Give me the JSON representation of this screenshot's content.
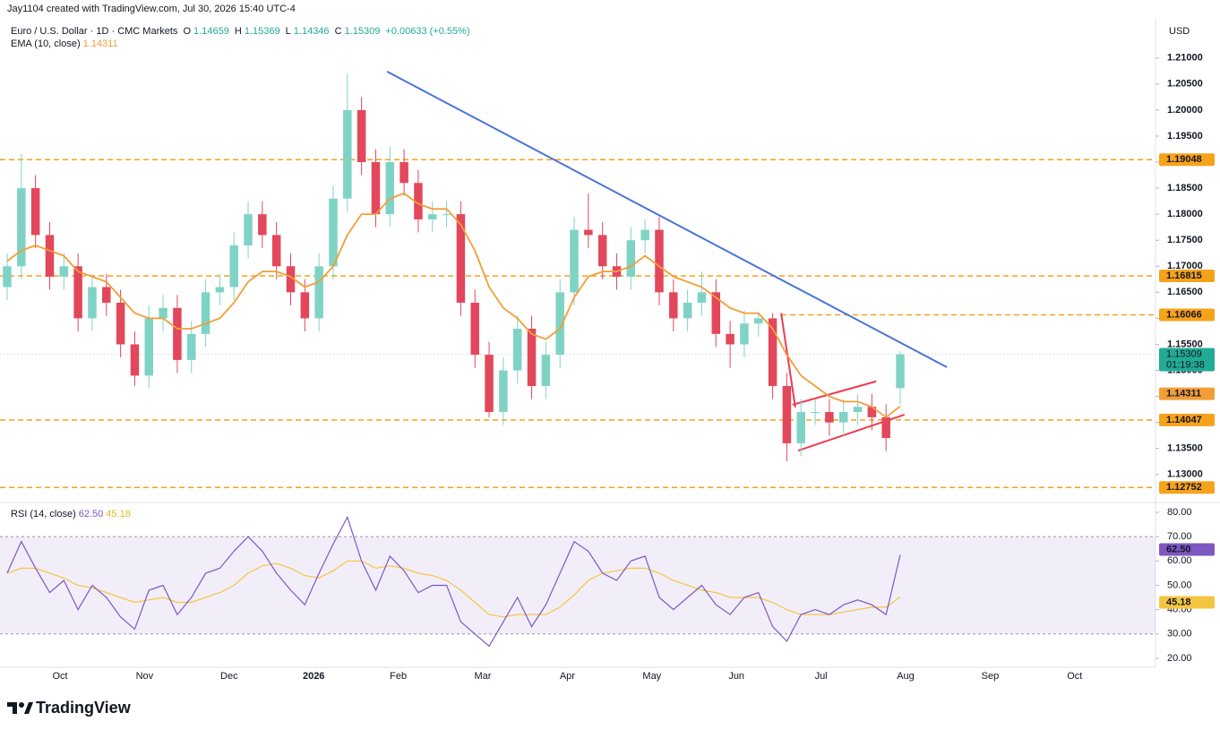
{
  "chart_data": {
    "type": "candlestick",
    "credit": "Jay1104 created with TradingView.com, Jul 30, 2026 15:40 UTC-4",
    "symbol": "Euro / U.S. Dollar · 1D · CMC Markets",
    "ohlc_letters": [
      "O",
      "H",
      "L",
      "C"
    ],
    "change": "+0.00633 (+0.55%)",
    "currency": "USD",
    "countdown": "01:19:38",
    "brand": "TradingView",
    "up_color": "#7fd3c5",
    "down_color": "#e2475c",
    "grid": false,
    "ylim": [
      1.1248,
      1.2177
    ],
    "yticks": [
      {
        "value": 1.13,
        "label": "1.13000"
      },
      {
        "value": 1.135,
        "label": "1.13500"
      },
      {
        "value": 1.14,
        "label": "1.14000"
      },
      {
        "value": 1.145,
        "label": "1.14500"
      },
      {
        "value": 1.15,
        "label": "1.15000"
      },
      {
        "value": 1.155,
        "label": "1.15500"
      },
      {
        "value": 1.16,
        "label": "1.16000"
      },
      {
        "value": 1.165,
        "label": "1.16500"
      },
      {
        "value": 1.17,
        "label": "1.17000"
      },
      {
        "value": 1.175,
        "label": "1.17500"
      },
      {
        "value": 1.18,
        "label": "1.18000"
      },
      {
        "value": 1.185,
        "label": "1.18500"
      },
      {
        "value": 1.19,
        "label": "1.19000"
      },
      {
        "value": 1.195,
        "label": "1.19500"
      },
      {
        "value": 1.2,
        "label": "1.20000"
      },
      {
        "value": 1.205,
        "label": "1.20500"
      },
      {
        "value": 1.21,
        "label": "1.21000"
      }
    ],
    "categories": [
      "Oct",
      "Nov",
      "Dec",
      "2026",
      "Feb",
      "Mar",
      "Apr",
      "May",
      "Jun",
      "Jul",
      "Aug",
      "Sep",
      "Oct"
    ],
    "candles": {
      "open": [
        1.166,
        1.17,
        1.185,
        1.176,
        1.168,
        1.17,
        1.16,
        1.166,
        1.163,
        1.155,
        1.149,
        1.16,
        1.162,
        1.152,
        1.157,
        1.165,
        1.166,
        1.174,
        1.18,
        1.176,
        1.17,
        1.165,
        1.16,
        1.17,
        1.183,
        1.2,
        1.19,
        1.18,
        1.19,
        1.186,
        1.179,
        1.18,
        1.18,
        1.163,
        1.153,
        1.142,
        1.15,
        1.158,
        1.147,
        1.153,
        1.165,
        1.177,
        1.176,
        1.17,
        1.168,
        1.175,
        1.177,
        1.165,
        1.16,
        1.163,
        1.165,
        1.157,
        1.155,
        1.159,
        1.16,
        1.147,
        1.136,
        1.142,
        1.142,
        1.14,
        1.142,
        1.143,
        1.141,
        1.14659
      ],
      "high": [
        1.1725,
        1.1915,
        1.1875,
        1.1785,
        1.1725,
        1.1725,
        1.1685,
        1.1685,
        1.1655,
        1.1575,
        1.1625,
        1.1645,
        1.1645,
        1.1595,
        1.1675,
        1.1685,
        1.1765,
        1.1825,
        1.1825,
        1.1785,
        1.1725,
        1.1675,
        1.1725,
        1.1855,
        1.207,
        1.2025,
        1.1925,
        1.193,
        1.1925,
        1.1885,
        1.1825,
        1.1825,
        1.1825,
        1.1655,
        1.1555,
        1.1525,
        1.1605,
        1.1605,
        1.1555,
        1.1675,
        1.1795,
        1.184,
        1.1785,
        1.1725,
        1.1775,
        1.179,
        1.1795,
        1.1675,
        1.1655,
        1.169,
        1.1675,
        1.1595,
        1.1615,
        1.161,
        1.161,
        1.1495,
        1.1445,
        1.1445,
        1.1445,
        1.1445,
        1.1455,
        1.1455,
        1.1435,
        1.15369
      ],
      "low": [
        1.1635,
        1.1675,
        1.1735,
        1.1655,
        1.1655,
        1.1575,
        1.1575,
        1.1605,
        1.1525,
        1.147,
        1.1465,
        1.1575,
        1.1495,
        1.1495,
        1.1545,
        1.1625,
        1.1635,
        1.1715,
        1.1735,
        1.1675,
        1.1625,
        1.1575,
        1.1575,
        1.1675,
        1.1805,
        1.1875,
        1.1775,
        1.1775,
        1.1835,
        1.1765,
        1.1765,
        1.1775,
        1.1605,
        1.1505,
        1.141,
        1.1395,
        1.1475,
        1.1445,
        1.1445,
        1.1505,
        1.1625,
        1.1735,
        1.1675,
        1.1655,
        1.1655,
        1.1725,
        1.1625,
        1.1575,
        1.1575,
        1.1605,
        1.1545,
        1.1505,
        1.1525,
        1.1565,
        1.1445,
        1.1325,
        1.1335,
        1.1395,
        1.1375,
        1.1375,
        1.1395,
        1.1385,
        1.1345,
        1.14346
      ],
      "close": [
        1.17,
        1.185,
        1.176,
        1.168,
        1.17,
        1.16,
        1.166,
        1.163,
        1.155,
        1.149,
        1.16,
        1.162,
        1.152,
        1.157,
        1.165,
        1.166,
        1.174,
        1.18,
        1.176,
        1.17,
        1.165,
        1.16,
        1.17,
        1.183,
        1.2,
        1.19,
        1.18,
        1.19,
        1.186,
        1.179,
        1.18,
        1.18,
        1.163,
        1.153,
        1.142,
        1.15,
        1.158,
        1.147,
        1.153,
        1.165,
        1.177,
        1.176,
        1.17,
        1.168,
        1.175,
        1.177,
        1.165,
        1.16,
        1.163,
        1.165,
        1.157,
        1.155,
        1.159,
        1.16,
        1.147,
        1.136,
        1.142,
        1.142,
        1.14,
        1.142,
        1.143,
        1.141,
        1.137,
        1.15309
      ]
    },
    "price_color": "#22ab94",
    "ema": {
      "name": "EMA (10, close)",
      "color": "#f29d38",
      "values": [
        1.171,
        1.173,
        1.174,
        1.173,
        1.172,
        1.169,
        1.168,
        1.167,
        1.164,
        1.161,
        1.16,
        1.16,
        1.158,
        1.158,
        1.159,
        1.16,
        1.163,
        1.167,
        1.169,
        1.169,
        1.168,
        1.166,
        1.167,
        1.17,
        1.176,
        1.18,
        1.18,
        1.183,
        1.184,
        1.182,
        1.181,
        1.181,
        1.178,
        1.173,
        1.166,
        1.162,
        1.16,
        1.157,
        1.156,
        1.158,
        1.164,
        1.168,
        1.169,
        1.169,
        1.17,
        1.172,
        1.17,
        1.168,
        1.167,
        1.166,
        1.164,
        1.162,
        1.161,
        1.161,
        1.158,
        1.153,
        1.149,
        1.147,
        1.145,
        1.144,
        1.144,
        1.143,
        1.141,
        1.14311
      ]
    },
    "levels": [
      {
        "value": 1.19048,
        "color": "#f7a21b"
      },
      {
        "value": 1.16815,
        "color": "#f7a21b"
      },
      {
        "value": 1.16066,
        "color": "#f7a21b",
        "start": 54.6
      },
      {
        "value": 1.14047,
        "color": "#f7a21b"
      },
      {
        "value": 1.12752,
        "color": "#f7a21b"
      }
    ],
    "trendlines": [
      {
        "color": "#4a74d8",
        "points": [
          [
            26.8,
            1.2074
          ],
          [
            66.3,
            1.1506
          ]
        ]
      },
      {
        "color": "#ef3b4f",
        "points": [
          [
            54.6,
            1.161
          ],
          [
            55.6,
            1.1429
          ]
        ]
      },
      {
        "color": "#ef3b4f",
        "points": [
          [
            55.4,
            1.1434
          ],
          [
            61.3,
            1.1479
          ]
        ]
      },
      {
        "color": "#ef3b4f",
        "points": [
          [
            55.8,
            1.1346
          ],
          [
            63.3,
            1.1415
          ]
        ]
      }
    ],
    "rsi": {
      "name": "RSI (14, close)",
      "color": "#7e57c2",
      "value_label": "62.50",
      "values": [
        55,
        68,
        57,
        47,
        52,
        40,
        50,
        45,
        37,
        32,
        48,
        50,
        38,
        45,
        55,
        57,
        64,
        70,
        64,
        55,
        48,
        42,
        55,
        67,
        78,
        60,
        48,
        62,
        56,
        47,
        50,
        50,
        35,
        30,
        25,
        35,
        45,
        33,
        42,
        55,
        68,
        64,
        55,
        52,
        60,
        62,
        45,
        40,
        45,
        50,
        42,
        38,
        45,
        47,
        33,
        27,
        38,
        40,
        38,
        42,
        44,
        42,
        38,
        62.5
      ],
      "ma_color": "#f5c542",
      "ma_values": [
        55,
        57,
        57,
        55,
        53,
        50,
        49,
        47,
        45,
        43,
        44,
        45,
        43,
        43,
        45,
        47,
        50,
        55,
        58,
        59,
        57,
        54,
        53,
        56,
        60,
        60,
        57,
        58,
        57,
        55,
        54,
        52,
        48,
        43,
        38,
        37,
        38,
        38,
        38,
        41,
        46,
        52,
        55,
        56,
        57,
        57,
        55,
        52,
        50,
        48,
        47,
        45,
        45,
        45,
        43,
        40,
        38,
        38,
        38,
        39,
        40,
        41,
        41,
        45.18
      ],
      "band": [
        30,
        70
      ],
      "ylim": [
        16.3,
        83.3
      ],
      "yticks": [
        {
          "value": 20,
          "label": "20.00"
        },
        {
          "value": 30,
          "label": "30.00"
        },
        {
          "value": 40,
          "label": "40.00"
        },
        {
          "value": 50,
          "label": "50.00"
        },
        {
          "value": 60,
          "label": "60.00"
        },
        {
          "value": 70,
          "label": "70.00"
        },
        {
          "value": 80,
          "label": "80.00"
        }
      ]
    }
  }
}
